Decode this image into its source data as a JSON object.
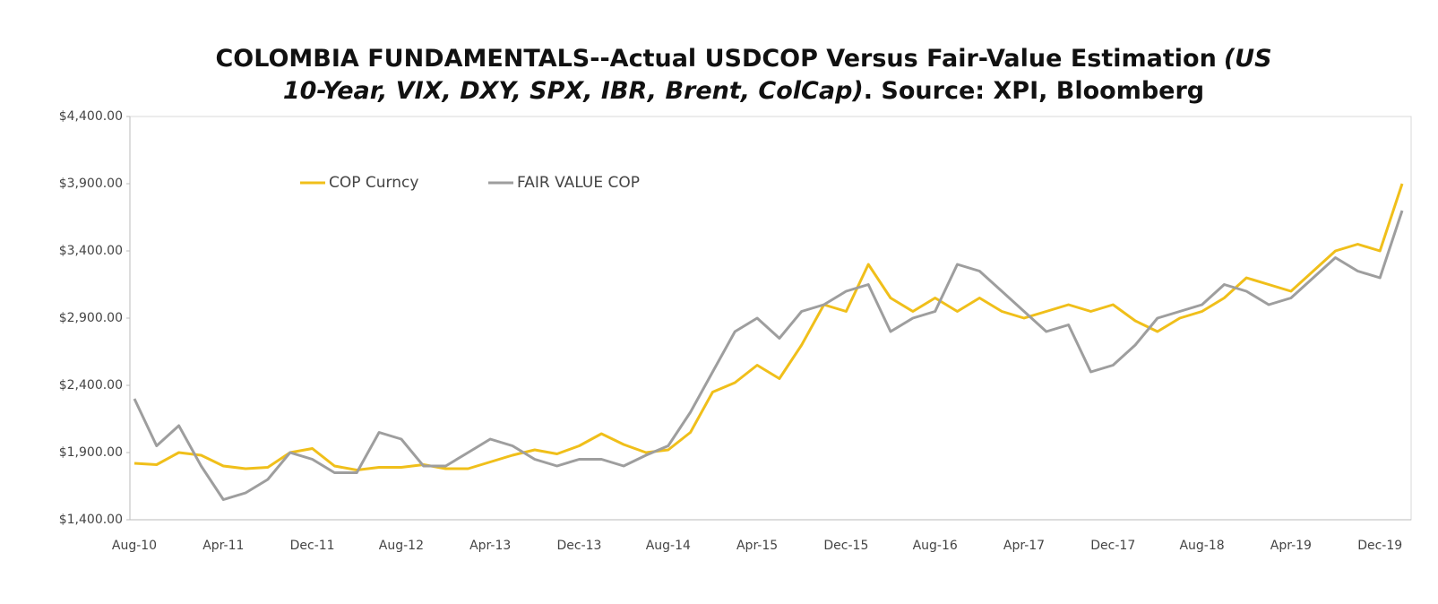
{
  "chart_data": {
    "type": "line",
    "title_parts": [
      "COLOMBIA FUNDAMENTALS--Actual USDCOP Versus Fair-Value Estimation",
      "(US",
      "10-Year, VIX, DXY, SPX, IBR, Brent, ColCap)",
      ". Source: XPI, Bloomberg"
    ],
    "categories": [
      "Aug-10",
      null,
      null,
      null,
      "Apr-11",
      null,
      null,
      null,
      "Dec-11",
      null,
      null,
      null,
      "Aug-12",
      null,
      null,
      null,
      "Apr-13",
      null,
      null,
      null,
      "Dec-13",
      null,
      null,
      null,
      "Aug-14",
      null,
      null,
      null,
      "Apr-15",
      null,
      null,
      null,
      "Dec-15",
      null,
      null,
      null,
      "Aug-16",
      null,
      null,
      null,
      "Apr-17",
      null,
      null,
      null,
      "Dec-17",
      null,
      null,
      null,
      "Aug-18",
      null,
      null,
      null,
      "Apr-19",
      null,
      null,
      null,
      "Dec-19",
      null
    ],
    "series": [
      {
        "name": "COP Curncy",
        "color": "#f0bf1a",
        "values": [
          1820,
          1810,
          1900,
          1880,
          1800,
          1780,
          1790,
          1900,
          1930,
          1800,
          1770,
          1790,
          1790,
          1810,
          1780,
          1780,
          1830,
          1880,
          1920,
          1890,
          1950,
          2040,
          1960,
          1900,
          1920,
          2050,
          2350,
          2420,
          2550,
          2450,
          2700,
          3000,
          2950,
          3300,
          3050,
          2950,
          3050,
          2950,
          3050,
          2950,
          2900,
          2950,
          3000,
          2950,
          3000,
          2880,
          2800,
          2900,
          2950,
          3050,
          3200,
          3150,
          3100,
          3250,
          3400,
          3450,
          3400,
          3900
        ]
      },
      {
        "name": "FAIR VALUE COP",
        "color": "#9e9e9e",
        "values": [
          2300,
          1950,
          2100,
          1800,
          1550,
          1600,
          1700,
          1900,
          1850,
          1750,
          1750,
          2050,
          2000,
          1800,
          1800,
          1900,
          2000,
          1950,
          1850,
          1800,
          1850,
          1850,
          1800,
          1880,
          1950,
          2200,
          2500,
          2800,
          2900,
          2750,
          2950,
          3000,
          3100,
          3150,
          2800,
          2900,
          2950,
          3300,
          3250,
          3100,
          2950,
          2800,
          2850,
          2500,
          2550,
          2700,
          2900,
          2950,
          3000,
          3150,
          3100,
          3000,
          3050,
          3200,
          3350,
          3250,
          3200,
          3700
        ]
      }
    ],
    "ylim": [
      1400,
      4400
    ],
    "yticks": [
      {
        "value": 1400,
        "label": "$1,400.00"
      },
      {
        "value": 1900,
        "label": "$1,900.00"
      },
      {
        "value": 2400,
        "label": "$2,400.00"
      },
      {
        "value": 2900,
        "label": "$2,900.00"
      },
      {
        "value": 3400,
        "label": "$3,400.00"
      },
      {
        "value": 3900,
        "label": "$3,900.00"
      },
      {
        "value": 4400,
        "label": "$4,400.00"
      }
    ],
    "grid": false,
    "legend": "top-left"
  }
}
